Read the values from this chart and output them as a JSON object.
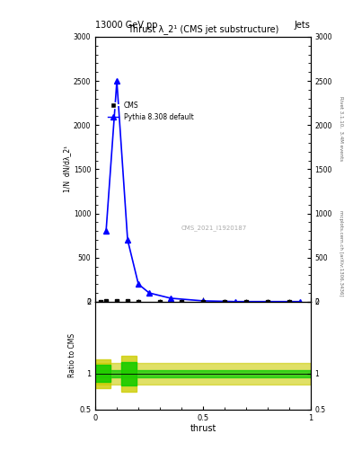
{
  "title_left": "13000 GeV pp",
  "title_right": "Jets",
  "plot_title": "Thrust λ_2¹ (CMS jet substructure)",
  "right_label_top": "Rivet 3.1.10,  3.4M events",
  "right_label_bottom": "mcplots.cern.ch [arXiv:1306.3436]",
  "watermark": "CMS_2021_I1920187",
  "xlabel": "thrust",
  "ylabel_ratio": "Ratio to CMS",
  "cms_x": [
    0.025,
    0.05,
    0.1,
    0.15,
    0.2,
    0.3,
    0.4,
    0.5,
    0.6,
    0.7,
    0.8,
    0.9
  ],
  "cms_y": [
    2,
    4,
    5,
    4,
    3,
    2,
    1.5,
    1,
    0.5,
    0.3,
    0.2,
    0.1
  ],
  "pythia_x": [
    0.05,
    0.1,
    0.15,
    0.2,
    0.25,
    0.35,
    0.5,
    0.65,
    0.95
  ],
  "pythia_y": [
    800,
    2500,
    700,
    200,
    100,
    40,
    10,
    2,
    2
  ],
  "cms_color": "#000000",
  "pythia_color": "#0000ff",
  "ylim_main": [
    0,
    3000
  ],
  "ylim_ratio": [
    0.5,
    2.0
  ],
  "xlim": [
    0.0,
    1.0
  ],
  "yticks_main": [
    0,
    500,
    1000,
    1500,
    2000,
    2500,
    3000
  ],
  "ytick_labels_main": [
    "0",
    "500",
    "1000",
    "1500",
    "2000",
    "2500",
    "3000"
  ]
}
